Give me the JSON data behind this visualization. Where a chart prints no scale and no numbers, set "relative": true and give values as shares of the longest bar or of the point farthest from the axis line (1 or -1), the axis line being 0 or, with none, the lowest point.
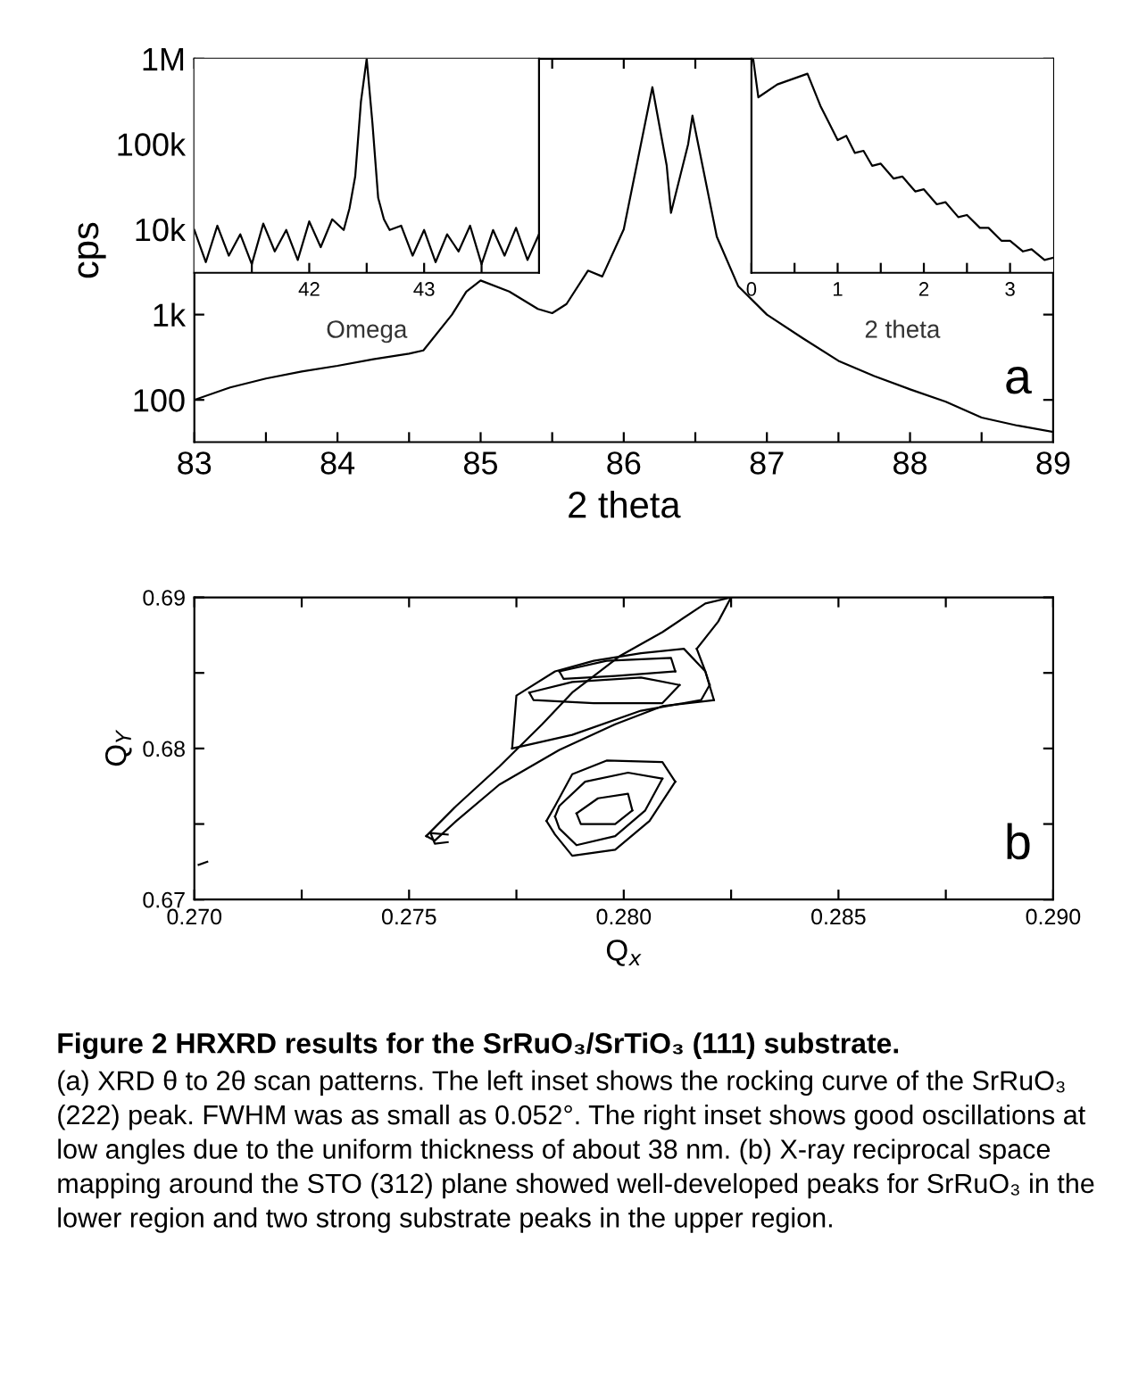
{
  "chart_data": [
    {
      "type": "line",
      "xlabel": "2 theta",
      "ylabel": "cps",
      "log": "y",
      "xlim": [
        83,
        89
      ],
      "ylim": [
        32,
        1000000
      ],
      "xticks": [
        83,
        {
          "value": 83.5,
          "label": null
        },
        84,
        {
          "value": 84.5,
          "label": null
        },
        85,
        {
          "value": 85.5,
          "label": null
        },
        86,
        {
          "value": 86.5,
          "label": null
        },
        87,
        {
          "value": 87.5,
          "label": null
        },
        88,
        {
          "value": 88.5,
          "label": null
        },
        89
      ],
      "yticks": [
        {
          "value": 100,
          "label": "100"
        },
        {
          "value": 1000,
          "label": "1k"
        },
        {
          "value": 10000,
          "label": "10k"
        },
        {
          "value": 100000,
          "label": "100k"
        },
        {
          "value": 1000000,
          "label": "1M"
        }
      ],
      "annotations": [
        "a"
      ],
      "grid": false,
      "series": [
        {
          "color": "#000000",
          "x": [
            83.0,
            83.25,
            83.5,
            83.75,
            84.0,
            84.25,
            84.5,
            84.6,
            84.8,
            84.9,
            85.0,
            85.2,
            85.4,
            85.5,
            85.6,
            85.75,
            85.85,
            86.0,
            86.1,
            86.2,
            86.3,
            86.33,
            86.45,
            86.48,
            86.55,
            86.65,
            86.8,
            87.0,
            87.25,
            87.5,
            87.75,
            88.0,
            88.25,
            88.5,
            88.75,
            89.0
          ],
          "values": [
            100,
            140,
            178,
            215,
            251,
            300,
            348,
            380,
            1000,
            1862,
            2512,
            1862,
            1166,
            1040,
            1330,
            3280,
            2800,
            10000,
            68000,
            464000,
            56000,
            15600,
            100000,
            215000,
            56000,
            8200,
            2150,
            1000,
            530,
            287,
            190,
            133,
            95,
            62,
            50,
            42
          ]
        }
      ]
    },
    {
      "type": "line",
      "xlabel": "Omega",
      "relative": true,
      "tick_labels": "x",
      "xlim": [
        41,
        44
      ],
      "xticks": [
        {
          "value": 41.5,
          "label": null
        },
        42,
        {
          "value": 42.5,
          "label": null
        },
        43,
        {
          "value": 43.5,
          "label": null
        }
      ],
      "series": [
        {
          "color": "#000000",
          "x": [
            41.0,
            41.1,
            41.2,
            41.3,
            41.4,
            41.5,
            41.6,
            41.7,
            41.8,
            41.9,
            42.0,
            42.1,
            42.2,
            42.3,
            42.35,
            42.4,
            42.45,
            42.5,
            42.55,
            42.6,
            42.65,
            42.7,
            42.8,
            42.9,
            43.0,
            43.1,
            43.2,
            43.3,
            43.4,
            43.5,
            43.6,
            43.7,
            43.8,
            43.9,
            44.0
          ],
          "values": [
            0.2,
            0.05,
            0.22,
            0.08,
            0.18,
            0.04,
            0.23,
            0.1,
            0.2,
            0.06,
            0.24,
            0.12,
            0.25,
            0.2,
            0.3,
            0.45,
            0.8,
            1.0,
            0.7,
            0.35,
            0.25,
            0.2,
            0.22,
            0.08,
            0.2,
            0.05,
            0.18,
            0.1,
            0.22,
            0.04,
            0.2,
            0.08,
            0.21,
            0.06,
            0.18
          ]
        }
      ]
    },
    {
      "type": "line",
      "xlabel": "2 theta",
      "relative": true,
      "tick_labels": "x",
      "xlim": [
        0,
        3.5
      ],
      "xticks": [
        0,
        {
          "value": 0.5,
          "label": null
        },
        1,
        {
          "value": 1.5,
          "label": null
        },
        2,
        {
          "value": 2.5,
          "label": null
        },
        3
      ],
      "series": [
        {
          "color": "#000000",
          "x": [
            0.02,
            0.08,
            0.3,
            0.65,
            0.75,
            0.8,
            0.9,
            1.0,
            1.1,
            1.2,
            1.3,
            1.4,
            1.5,
            1.65,
            1.75,
            1.9,
            2.0,
            2.15,
            2.25,
            2.4,
            2.5,
            2.65,
            2.75,
            2.9,
            3.0,
            3.15,
            3.25,
            3.4,
            3.5
          ],
          "values": [
            1.0,
            0.82,
            0.88,
            0.93,
            0.83,
            0.78,
            0.7,
            0.62,
            0.64,
            0.56,
            0.57,
            0.5,
            0.51,
            0.44,
            0.45,
            0.38,
            0.39,
            0.32,
            0.33,
            0.26,
            0.27,
            0.21,
            0.21,
            0.15,
            0.15,
            0.1,
            0.11,
            0.06,
            0.07
          ]
        }
      ]
    },
    {
      "type": "line",
      "xlabel": "Q$_{x}$",
      "ylabel": "Q$_{Y}$",
      "xlim": [
        0.27,
        0.29
      ],
      "ylim": [
        0.67,
        0.69
      ],
      "xticks": [
        {
          "value": 0.27,
          "label": "0.270"
        },
        {
          "value": 0.2725,
          "label": null
        },
        {
          "value": 0.275,
          "label": "0.275"
        },
        {
          "value": 0.2775,
          "label": null
        },
        {
          "value": 0.28,
          "label": "0.280"
        },
        {
          "value": 0.2825,
          "label": null
        },
        {
          "value": 0.285,
          "label": "0.285"
        },
        {
          "value": 0.2875,
          "label": null
        },
        {
          "value": 0.29,
          "label": "0.290"
        }
      ],
      "yticks": [
        0.67,
        {
          "value": 0.675,
          "label": null
        },
        0.68,
        {
          "value": 0.685,
          "label": null
        },
        0.69
      ],
      "annotations": [
        "b",
        "Figure 2 HRXRD results for the SrRuO₃/SrTiO₃ (111) substrate.",
        "(a) XRD θ to 2θ scan patterns. The left inset shows the rocking curve of the SrRuO₃ (222) peak. FWHM was as small as 0.052°. The right inset shows good oscillations at low angles due to the uniform thickness of about 38 nm. (b) X-ray reciprocal space mapping around the STO (312) plane showed well-developed peaks for SrRuO₃ in the lower region and two strong substrate peaks in the upper region."
      ],
      "series": [
        {
          "color": "#000000",
          "x": [
            0.2782,
            0.2784,
            0.2788,
            0.2796,
            0.2809,
            0.2812
          ],
          "values": [
            0.6752,
            0.6762,
            0.6783,
            0.6792,
            0.6791,
            0.6778
          ]
        },
        {
          "color": "#000000",
          "x": [
            0.2782,
            0.2784,
            0.2788,
            0.2798,
            0.2806,
            0.2812
          ],
          "values": [
            0.6752,
            0.6743,
            0.6729,
            0.6733,
            0.6752,
            0.6778
          ]
        },
        {
          "color": "#000000",
          "x": [
            0.2784,
            0.2785,
            0.2791,
            0.2801,
            0.2809
          ],
          "values": [
            0.6755,
            0.6762,
            0.6778,
            0.6784,
            0.678
          ]
        },
        {
          "color": "#000000",
          "x": [
            0.2784,
            0.2785,
            0.2789,
            0.2798,
            0.2805,
            0.2809
          ],
          "values": [
            0.6755,
            0.6747,
            0.6736,
            0.6742,
            0.6759,
            0.678
          ]
        },
        {
          "color": "#000000",
          "x": [
            0.2789,
            0.2794,
            0.2801,
            0.2802
          ],
          "values": [
            0.6757,
            0.6767,
            0.677,
            0.6759
          ]
        },
        {
          "color": "#000000",
          "x": [
            0.2789,
            0.279,
            0.2798,
            0.2802
          ],
          "values": [
            0.6757,
            0.675,
            0.675,
            0.6759
          ]
        },
        {
          "color": "#000000",
          "x": [
            0.2754,
            0.2761,
            0.2771,
            0.2781,
            0.2788,
            0.2799,
            0.2809,
            0.2819,
            0.2825
          ],
          "values": [
            0.6742,
            0.6762,
            0.6788,
            0.6816,
            0.6837,
            0.6861,
            0.6877,
            0.6896,
            0.69
          ]
        },
        {
          "color": "#000000",
          "x": [
            0.2817,
            0.2822,
            0.2825
          ],
          "values": [
            0.6866,
            0.6884,
            0.69
          ]
        },
        {
          "color": "#000000",
          "x": [
            0.2817,
            0.2819,
            0.2821
          ],
          "values": [
            0.6866,
            0.6851,
            0.6832
          ]
        },
        {
          "color": "#000000",
          "x": [
            0.2754,
            0.2756,
            0.2761,
            0.2771,
            0.2785,
            0.2798,
            0.2809,
            0.2821
          ],
          "values": [
            0.6742,
            0.6739,
            0.6752,
            0.6776,
            0.6799,
            0.6816,
            0.6828,
            0.6832
          ]
        },
        {
          "color": "#000000",
          "x": [
            0.2774,
            0.2775,
            0.2784,
            0.2793,
            0.2804,
            0.2814,
            0.2819,
            0.282
          ],
          "values": [
            0.68,
            0.6835,
            0.6851,
            0.6858,
            0.6863,
            0.6866,
            0.6851,
            0.6842
          ]
        },
        {
          "color": "#000000",
          "x": [
            0.2774,
            0.2788,
            0.2804,
            0.2818,
            0.282
          ],
          "values": [
            0.68,
            0.6809,
            0.6825,
            0.6832,
            0.6842
          ]
        },
        {
          "color": "#000000",
          "x": [
            0.2785,
            0.2796,
            0.2811,
            0.2812
          ],
          "values": [
            0.6851,
            0.6858,
            0.686,
            0.6851
          ]
        },
        {
          "color": "#000000",
          "x": [
            0.2785,
            0.2786,
            0.2798,
            0.2812
          ],
          "values": [
            0.6851,
            0.6846,
            0.6848,
            0.6851
          ]
        },
        {
          "color": "#000000",
          "x": [
            0.2778,
            0.2788,
            0.2804,
            0.2813
          ],
          "values": [
            0.6837,
            0.6844,
            0.6847,
            0.6842
          ]
        },
        {
          "color": "#000000",
          "x": [
            0.2778,
            0.2779,
            0.2793,
            0.2809,
            0.2813
          ],
          "values": [
            0.6837,
            0.6832,
            0.683,
            0.683,
            0.6842
          ]
        },
        {
          "color": "#000000",
          "x": [
            0.2755,
            0.2759
          ],
          "values": [
            0.6744,
            0.6743
          ]
        },
        {
          "color": "#000000",
          "x": [
            0.2755,
            0.2756,
            0.2759
          ],
          "values": [
            0.6744,
            0.6737,
            0.6738
          ]
        },
        {
          "color": "#000000",
          "x": [
            0.2701,
            0.2703
          ],
          "values": [
            0.6723,
            0.6725
          ]
        }
      ]
    }
  ]
}
